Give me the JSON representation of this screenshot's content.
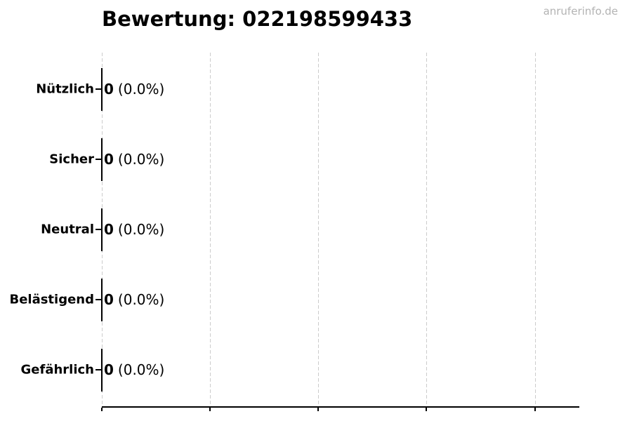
{
  "page": {
    "watermark": "anruferinfo.de"
  },
  "chart_data": {
    "type": "bar",
    "orientation": "horizontal",
    "title": "Bewertung: 022198599433",
    "categories": [
      "Nützlich",
      "Sicher",
      "Neutral",
      "Belästigend",
      "Gefährlich"
    ],
    "values": [
      0,
      0,
      0,
      0,
      0
    ],
    "percentages": [
      0.0,
      0.0,
      0.0,
      0.0,
      0.0
    ],
    "value_display": [
      "0",
      "0",
      "0",
      "0",
      "0"
    ],
    "percent_display": [
      "(0.0%)",
      "(0.0%)",
      "(0.0%)",
      "(0.0%)",
      "(0.0%)"
    ],
    "bar_labels": [
      "0 (0.0%)",
      "0 (0.0%)",
      "0 (0.0%)",
      "0 (0.0%)",
      "0 (0.0%)"
    ],
    "xlabel": "",
    "ylabel": "",
    "x_axis": {
      "tick_labels_visible": false,
      "gridline_count": 5,
      "grid_style": "dashed"
    },
    "legend": "none",
    "colors": {
      "background": "#ffffff",
      "bar_edge": "#000000",
      "grid": "#cccccc",
      "text": "#000000",
      "watermark": "#b3b3b3"
    }
  }
}
